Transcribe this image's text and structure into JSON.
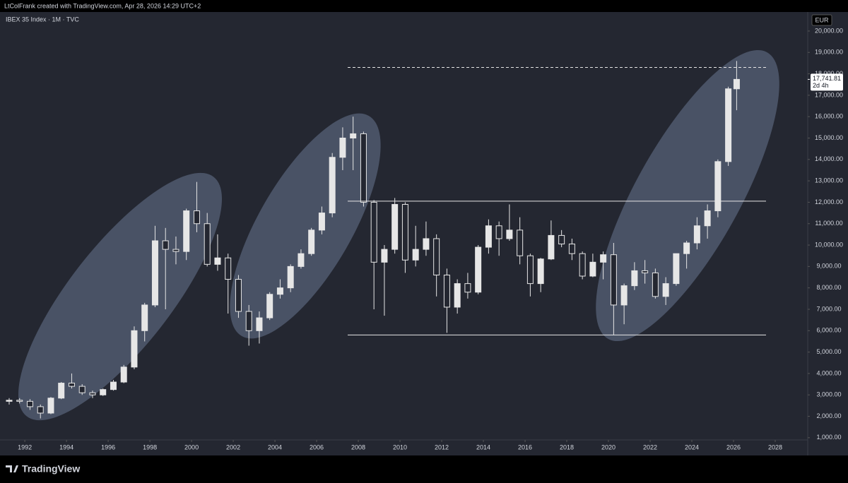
{
  "header": "LtColFrank created with TradingView.com, Apr 28, 2026 14:29 UTC+2",
  "footer": {
    "logo": "TradingView"
  },
  "chart_data": {
    "type": "candlestick",
    "title": "IBEX 35 Index · 1M · TVC",
    "currency": "EUR",
    "color": "#e6e6e6",
    "xlim": [
      1990.81,
      2029.56
    ],
    "xticks": [
      1992,
      1994,
      1996,
      1998,
      2000,
      2002,
      2004,
      2006,
      2008,
      2010,
      2012,
      2014,
      2016,
      2018,
      2020,
      2022,
      2024,
      2026,
      2028
    ],
    "ylim": [
      830,
      20460
    ],
    "yticks": [
      {
        "value": 1000,
        "label": "1,000.00"
      },
      {
        "value": 2000,
        "label": "2,000.00"
      },
      {
        "value": 3000,
        "label": "3,000.00"
      },
      {
        "value": 4000,
        "label": "4,000.00"
      },
      {
        "value": 5000,
        "label": "5,000.00"
      },
      {
        "value": 6000,
        "label": "6,000.00"
      },
      {
        "value": 7000,
        "label": "7,000.00"
      },
      {
        "value": 8000,
        "label": "8,000.00"
      },
      {
        "value": 9000,
        "label": "9,000.00"
      },
      {
        "value": 10000,
        "label": "10,000.00"
      },
      {
        "value": 11000,
        "label": "11,000.00"
      },
      {
        "value": 12000,
        "label": "12,000.00"
      },
      {
        "value": 13000,
        "label": "13,000.00"
      },
      {
        "value": 14000,
        "label": "14,000.00"
      },
      {
        "value": 15000,
        "label": "15,000.00"
      },
      {
        "value": 16000,
        "label": "16,000.00"
      },
      {
        "value": 17000,
        "label": "17,000.00"
      },
      {
        "value": 18000,
        "label": "18,000.00"
      },
      {
        "value": 19000,
        "label": "19,000.00"
      },
      {
        "value": 20000,
        "label": "20,000.00"
      }
    ],
    "x": [
      1991.25,
      1991.75,
      1992.25,
      1992.75,
      1993.25,
      1993.75,
      1994.25,
      1994.75,
      1995.25,
      1995.75,
      1996.25,
      1996.75,
      1997.25,
      1997.75,
      1998.25,
      1998.75,
      1999.25,
      1999.75,
      2000.25,
      2000.75,
      2001.25,
      2001.75,
      2002.25,
      2002.75,
      2003.25,
      2003.75,
      2004.25,
      2004.75,
      2005.25,
      2005.75,
      2006.25,
      2006.75,
      2007.25,
      2007.75,
      2008.25,
      2008.75,
      2009.25,
      2009.75,
      2010.25,
      2010.75,
      2011.25,
      2011.75,
      2012.25,
      2012.75,
      2013.25,
      2013.75,
      2014.25,
      2014.75,
      2015.25,
      2015.75,
      2016.25,
      2016.75,
      2017.25,
      2017.75,
      2018.25,
      2018.75,
      2019.25,
      2019.75,
      2020.25,
      2020.75,
      2021.25,
      2021.75,
      2022.25,
      2022.75,
      2023.25,
      2023.75,
      2024.25,
      2024.75,
      2025.25,
      2025.75,
      2026.15
    ],
    "open": [
      2700,
      2750,
      2700,
      2450,
      2150,
      2850,
      3550,
      3400,
      3100,
      3000,
      3250,
      3600,
      4300,
      6000,
      7200,
      10200,
      9800,
      9700,
      11600,
      11000,
      9100,
      9400,
      8400,
      6900,
      6000,
      6600,
      7700,
      8000,
      9000,
      9600,
      10700,
      11500,
      14100,
      15000,
      15200,
      12000,
      9200,
      9800,
      11900,
      9300,
      9800,
      10300,
      8600,
      7100,
      8200,
      7800,
      9900,
      10900,
      10300,
      10700,
      9500,
      8200,
      9350,
      10450,
      10050,
      9600,
      8550,
      9200,
      9550,
      7200,
      8100,
      8800,
      8700,
      7600,
      8200,
      9600,
      10100,
      10900,
      11600,
      13900,
      17300
    ],
    "high": [
      2850,
      2850,
      2800,
      2550,
      2900,
      3600,
      4000,
      3500,
      3200,
      3300,
      3700,
      4400,
      6200,
      7300,
      10900,
      10800,
      10400,
      11700,
      12950,
      11500,
      10500,
      9600,
      8600,
      7200,
      6900,
      7800,
      8400,
      9100,
      9800,
      10800,
      11800,
      14300,
      15500,
      16000,
      15300,
      12100,
      10000,
      12200,
      12000,
      10900,
      11100,
      10500,
      8900,
      8400,
      8700,
      10000,
      11200,
      11100,
      11900,
      11300,
      9600,
      9400,
      11150,
      10700,
      10300,
      9700,
      9600,
      9700,
      10100,
      8200,
      9200,
      9300,
      8900,
      8500,
      9600,
      10200,
      11300,
      11900,
      14000,
      17400,
      18600
    ],
    "low": [
      2550,
      2600,
      2300,
      1900,
      2100,
      2800,
      3300,
      3000,
      2850,
      2950,
      3200,
      3550,
      4200,
      5500,
      7100,
      7000,
      9100,
      9300,
      10600,
      9000,
      8800,
      6800,
      6600,
      5300,
      5400,
      6500,
      7500,
      7800,
      8900,
      9500,
      10500,
      11300,
      13500,
      13500,
      11800,
      7000,
      6700,
      9600,
      8700,
      9000,
      9500,
      7600,
      5900,
      6800,
      7500,
      7700,
      9600,
      9500,
      10200,
      9100,
      7600,
      7800,
      9300,
      9900,
      9300,
      8400,
      8500,
      8400,
      5800,
      6300,
      7900,
      8200,
      7500,
      7200,
      8100,
      8900,
      9800,
      10300,
      11300,
      13700,
      16300
    ],
    "close": [
      2750,
      2700,
      2450,
      2150,
      2850,
      3550,
      3400,
      3100,
      3000,
      3250,
      3600,
      4300,
      6000,
      7200,
      10200,
      9800,
      9700,
      11600,
      11000,
      9100,
      9400,
      8400,
      6900,
      6000,
      6600,
      7700,
      8000,
      9000,
      9600,
      10700,
      11500,
      14100,
      15000,
      15200,
      12000,
      9200,
      9800,
      11900,
      9300,
      9800,
      10300,
      8600,
      7100,
      8200,
      7800,
      9900,
      10900,
      10300,
      10700,
      9500,
      8200,
      9350,
      10450,
      10050,
      9600,
      8550,
      9200,
      9550,
      7200,
      8100,
      8800,
      8700,
      7600,
      8200,
      9600,
      10100,
      10900,
      11600,
      13900,
      17300,
      17741.81
    ],
    "levels": [
      12050,
      5800
    ],
    "dashed_level": 18300,
    "last_price": {
      "value": 17741.81,
      "label": "17,741.81"
    },
    "countdown": "2d 4h"
  }
}
